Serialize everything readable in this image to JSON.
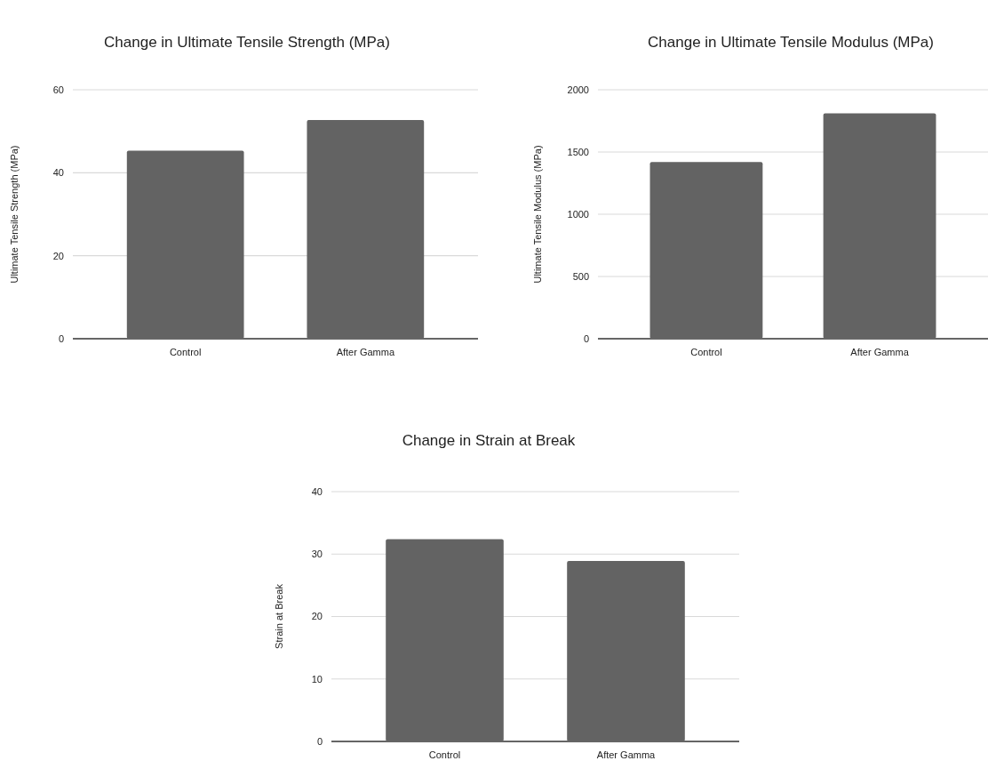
{
  "chart_data": [
    {
      "type": "bar",
      "title": "Change in Ultimate Tensile Strength (MPa)",
      "ylabel": "Ultimate Tensile Strength (MPa)",
      "categories": [
        "Control",
        "After Gamma"
      ],
      "values": [
        45.3,
        52.7
      ],
      "color": "#636363",
      "ylim": [
        0,
        60
      ],
      "yticks": [
        0,
        20,
        40,
        60
      ],
      "grid": "y"
    },
    {
      "type": "bar",
      "title": "Change in Ultimate Tensile Modulus (MPa)",
      "ylabel": "Ultimate Tensile Modulus (MPa)",
      "categories": [
        "Control",
        "After Gamma"
      ],
      "values": [
        1420,
        1810
      ],
      "color": "#636363",
      "ylim": [
        0,
        2000
      ],
      "yticks": [
        0,
        500,
        1000,
        1500,
        2000
      ],
      "grid": "y"
    },
    {
      "type": "bar",
      "title": "Change in Strain at Break",
      "ylabel": "Strain at Break",
      "categories": [
        "Control",
        "After Gamma"
      ],
      "values": [
        32.4,
        28.9
      ],
      "color": "#636363",
      "ylim": [
        0,
        40
      ],
      "yticks": [
        0,
        10,
        20,
        30,
        40
      ],
      "grid": "y"
    }
  ]
}
